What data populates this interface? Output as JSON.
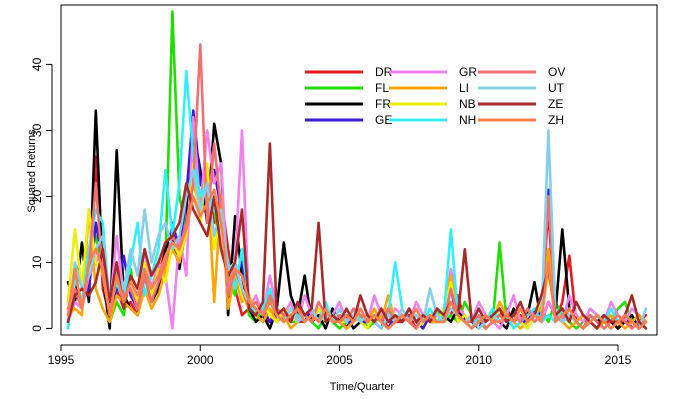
{
  "chart_data": {
    "type": "line",
    "xlabel": "Time/Quarter",
    "ylabel": "Squared Returns",
    "xlim": [
      1995,
      2016.4
    ],
    "ylim": [
      -1,
      49
    ],
    "xticks": [
      1995,
      2000,
      2005,
      2010,
      2015
    ],
    "yticks": [
      0,
      10,
      20,
      30,
      40
    ],
    "legend_position": "top-right",
    "grid": false,
    "x": [
      1995.25,
      1995.5,
      1995.75,
      1996.0,
      1996.25,
      1996.5,
      1996.75,
      1997.0,
      1997.25,
      1997.5,
      1997.75,
      1998.0,
      1998.25,
      1998.5,
      1998.75,
      1999.0,
      1999.25,
      1999.5,
      1999.75,
      2000.0,
      2000.25,
      2000.5,
      2000.75,
      2001.0,
      2001.25,
      2001.5,
      2001.75,
      2002.0,
      2002.25,
      2002.5,
      2002.75,
      2003.0,
      2003.25,
      2003.5,
      2003.75,
      2004.0,
      2004.25,
      2004.5,
      2004.75,
      2005.0,
      2005.25,
      2005.5,
      2005.75,
      2006.0,
      2006.25,
      2006.5,
      2006.75,
      2007.0,
      2007.25,
      2007.5,
      2007.75,
      2008.0,
      2008.25,
      2008.5,
      2008.75,
      2009.0,
      2009.25,
      2009.5,
      2009.75,
      2010.0,
      2010.25,
      2010.5,
      2010.75,
      2011.0,
      2011.25,
      2011.5,
      2011.75,
      2012.0,
      2012.25,
      2012.5,
      2012.75,
      2013.0,
      2013.25,
      2013.5,
      2013.75,
      2014.0,
      2014.25,
      2014.5,
      2014.75,
      2015.0,
      2015.25,
      2015.5,
      2015.75,
      2016.0
    ],
    "series": [
      {
        "name": "DR",
        "color": "#e41a1c",
        "values": [
          3,
          5,
          4,
          8,
          26,
          6,
          2,
          6,
          3,
          4,
          2,
          10,
          6,
          8,
          12,
          15,
          11,
          14,
          28,
          18,
          24,
          16,
          20,
          12,
          6,
          2,
          3,
          1,
          2,
          1,
          3,
          1,
          2,
          1,
          1,
          2,
          1,
          3,
          1,
          2,
          0,
          1,
          2,
          1,
          1,
          2,
          0,
          1,
          1,
          2,
          0,
          1,
          2,
          1,
          1,
          2,
          5,
          1,
          2,
          1,
          0,
          1,
          2,
          3,
          1,
          2,
          1,
          2,
          3,
          18,
          1,
          4,
          11,
          1,
          2,
          1,
          0,
          1,
          1,
          0,
          2,
          0,
          1,
          2
        ]
      },
      {
        "name": "FL",
        "color": "#22dd00",
        "values": [
          2,
          6,
          3,
          10,
          14,
          9,
          1,
          4,
          2,
          9,
          3,
          8,
          4,
          6,
          10,
          48,
          20,
          15,
          26,
          22,
          20,
          18,
          12,
          8,
          5,
          12,
          2,
          1,
          3,
          5,
          1,
          2,
          1,
          1,
          2,
          1,
          0,
          2,
          1,
          0,
          1,
          1,
          2,
          0,
          1,
          2,
          1,
          1,
          2,
          1,
          0,
          2,
          1,
          3,
          1,
          2,
          1,
          4,
          2,
          1,
          0,
          1,
          13,
          1,
          2,
          1,
          0,
          2,
          3,
          1,
          4,
          2,
          1,
          0,
          1,
          2,
          1,
          0,
          1,
          3,
          4,
          1,
          0,
          1
        ]
      },
      {
        "name": "FR",
        "color": "#000000",
        "values": [
          7,
          4,
          13,
          4,
          33,
          8,
          0,
          27,
          5,
          3,
          2,
          8,
          4,
          6,
          12,
          14,
          9,
          16,
          30,
          24,
          16,
          31,
          25,
          2,
          17,
          8,
          3,
          1,
          2,
          0,
          3,
          13,
          5,
          2,
          8,
          1,
          2,
          0,
          3,
          1,
          2,
          0,
          1,
          2,
          1,
          0,
          3,
          1,
          2,
          1,
          0,
          2,
          1,
          1,
          2,
          1,
          3,
          1,
          0,
          2,
          1,
          2,
          1,
          0,
          3,
          1,
          2,
          7,
          1,
          4,
          2,
          15,
          3,
          1,
          0,
          2,
          1,
          2,
          1,
          0,
          1,
          2,
          0,
          1
        ]
      },
      {
        "name": "GE",
        "color": "#3a1ad6",
        "values": [
          4,
          5,
          4,
          6,
          16,
          10,
          2,
          6,
          11,
          5,
          3,
          9,
          5,
          10,
          8,
          16,
          12,
          20,
          33,
          22,
          20,
          24,
          18,
          5,
          8,
          10,
          3,
          2,
          3,
          1,
          2,
          1,
          3,
          2,
          1,
          3,
          1,
          2,
          1,
          1,
          0,
          2,
          1,
          1,
          2,
          1,
          0,
          2,
          1,
          3,
          1,
          0,
          2,
          1,
          2,
          6,
          1,
          2,
          1,
          0,
          2,
          1,
          3,
          1,
          2,
          1,
          1,
          3,
          2,
          21,
          3,
          1,
          2,
          1,
          0,
          1,
          2,
          1,
          0,
          1,
          2,
          1,
          0,
          1
        ]
      },
      {
        "name": "GR",
        "color": "#ee82ee",
        "values": [
          1,
          4,
          3,
          8,
          10,
          12,
          3,
          14,
          5,
          8,
          4,
          12,
          6,
          10,
          8,
          0,
          14,
          8,
          32,
          18,
          30,
          22,
          25,
          6,
          10,
          30,
          3,
          5,
          2,
          8,
          3,
          2,
          4,
          1,
          5,
          2,
          3,
          1,
          2,
          4,
          1,
          2,
          3,
          1,
          5,
          2,
          1,
          3,
          2,
          1,
          4,
          2,
          1,
          3,
          2,
          9,
          3,
          2,
          1,
          4,
          2,
          1,
          0,
          2,
          5,
          1,
          3,
          2,
          1,
          4,
          2,
          1,
          5,
          2,
          1,
          3,
          2,
          1,
          4,
          2,
          1,
          3,
          2,
          1
        ]
      },
      {
        "name": "LI",
        "color": "#ffa500",
        "values": [
          2,
          3,
          2,
          18,
          6,
          3,
          1,
          5,
          4,
          3,
          2,
          6,
          3,
          5,
          9,
          12,
          10,
          15,
          22,
          18,
          24,
          4,
          20,
          3,
          8,
          4,
          5,
          2,
          1,
          3,
          1,
          2,
          0,
          1,
          2,
          1,
          3,
          1,
          2,
          1,
          0,
          1,
          2,
          1,
          3,
          1,
          5,
          1,
          2,
          1,
          0,
          2,
          1,
          1,
          3,
          8,
          2,
          1,
          0,
          1,
          2,
          1,
          4,
          2,
          1,
          0,
          1,
          2,
          3,
          12,
          2,
          1,
          0,
          1,
          2,
          1,
          0,
          1,
          2,
          1,
          0,
          1,
          2,
          1
        ]
      },
      {
        "name": "NB",
        "color": "#eeee00",
        "values": [
          4,
          15,
          6,
          18,
          10,
          8,
          2,
          9,
          6,
          8,
          4,
          10,
          5,
          9,
          7,
          13,
          11,
          14,
          25,
          16,
          25,
          12,
          17,
          8,
          10,
          5,
          3,
          2,
          4,
          2,
          1,
          3,
          2,
          1,
          2,
          1,
          3,
          1,
          2,
          1,
          1,
          2,
          1,
          0,
          2,
          1,
          3,
          1,
          2,
          1,
          0,
          1,
          2,
          1,
          3,
          7,
          1,
          2,
          1,
          2,
          0,
          1,
          3,
          1,
          2,
          1,
          0,
          2,
          4,
          8,
          3,
          1,
          2,
          1,
          0,
          1,
          2,
          1,
          0,
          1,
          2,
          1,
          0,
          1
        ]
      },
      {
        "name": "NH",
        "color": "#33eeff",
        "values": [
          0,
          8,
          4,
          12,
          18,
          16,
          3,
          7,
          4,
          10,
          16,
          5,
          8,
          12,
          24,
          14,
          22,
          39,
          26,
          20,
          22,
          18,
          16,
          10,
          6,
          12,
          4,
          2,
          3,
          6,
          2,
          1,
          3,
          2,
          1,
          2,
          1,
          4,
          1,
          2,
          1,
          3,
          1,
          2,
          1,
          0,
          2,
          10,
          3,
          1,
          2,
          1,
          3,
          1,
          2,
          15,
          2,
          1,
          0,
          2,
          1,
          3,
          1,
          2,
          0,
          1,
          2,
          3,
          1,
          2,
          1,
          3,
          2,
          1,
          0,
          1,
          2,
          1,
          3,
          1,
          2,
          1,
          0,
          1
        ]
      },
      {
        "name": "OV",
        "color": "#f07070",
        "values": [
          3,
          6,
          3,
          9,
          22,
          8,
          2,
          10,
          5,
          6,
          3,
          8,
          4,
          7,
          10,
          14,
          12,
          16,
          22,
          43,
          16,
          28,
          18,
          5,
          9,
          6,
          3,
          4,
          2,
          5,
          3,
          2,
          1,
          3,
          2,
          1,
          4,
          2,
          1,
          2,
          1,
          3,
          2,
          1,
          2,
          1,
          3,
          1,
          2,
          1,
          0,
          2,
          1,
          2,
          1,
          6,
          2,
          1,
          1,
          2,
          0,
          1,
          2,
          1,
          2,
          1,
          3,
          1,
          2,
          20,
          2,
          1,
          3,
          1,
          0,
          2,
          1,
          0,
          1,
          2,
          1,
          0,
          1,
          1
        ]
      },
      {
        "name": "UT",
        "color": "#87ceeb",
        "values": [
          1,
          10,
          6,
          8,
          12,
          14,
          4,
          9,
          6,
          12,
          8,
          18,
          10,
          14,
          16,
          12,
          14,
          20,
          24,
          18,
          22,
          14,
          18,
          9,
          10,
          6,
          4,
          3,
          2,
          4,
          2,
          1,
          3,
          1,
          2,
          3,
          1,
          2,
          1,
          3,
          1,
          2,
          1,
          2,
          1,
          0,
          2,
          1,
          3,
          1,
          2,
          1,
          6,
          2,
          1,
          3,
          2,
          1,
          2,
          0,
          1,
          2,
          1,
          2,
          1,
          3,
          1,
          2,
          1,
          30,
          3,
          1,
          2,
          1,
          0,
          1,
          2,
          1,
          0,
          1,
          2,
          1,
          0,
          3
        ]
      },
      {
        "name": "ZE",
        "color": "#a52a2a",
        "values": [
          1,
          5,
          6,
          5,
          7,
          12,
          4,
          10,
          3,
          8,
          6,
          12,
          8,
          10,
          13,
          14,
          16,
          22,
          18,
          16,
          14,
          20,
          12,
          8,
          10,
          18,
          3,
          2,
          4,
          28,
          2,
          3,
          1,
          4,
          2,
          3,
          16,
          1,
          2,
          1,
          3,
          1,
          5,
          2,
          1,
          3,
          1,
          2,
          1,
          3,
          1,
          2,
          1,
          3,
          2,
          4,
          2,
          12,
          1,
          3,
          1,
          2,
          3,
          1,
          2,
          4,
          1,
          2,
          5,
          9,
          2,
          3,
          1,
          4,
          2,
          1,
          0,
          2,
          1,
          1,
          2,
          5,
          1,
          0
        ]
      },
      {
        "name": "ZH",
        "color": "#ff7f50",
        "values": [
          2,
          9,
          3,
          10,
          12,
          9,
          2,
          8,
          4,
          7,
          5,
          9,
          6,
          8,
          11,
          13,
          12,
          15,
          20,
          17,
          19,
          21,
          16,
          7,
          9,
          8,
          4,
          3,
          2,
          4,
          2,
          1,
          2,
          3,
          1,
          2,
          1,
          3,
          1,
          1,
          2,
          1,
          3,
          1,
          2,
          1,
          0,
          1,
          2,
          1,
          3,
          1,
          2,
          1,
          1,
          4,
          2,
          1,
          0,
          1,
          2,
          1,
          1,
          2,
          1,
          3,
          1,
          2,
          1,
          10,
          1,
          2,
          3,
          1,
          0,
          1,
          2,
          1,
          0,
          1,
          2,
          1,
          0,
          1
        ]
      }
    ]
  }
}
